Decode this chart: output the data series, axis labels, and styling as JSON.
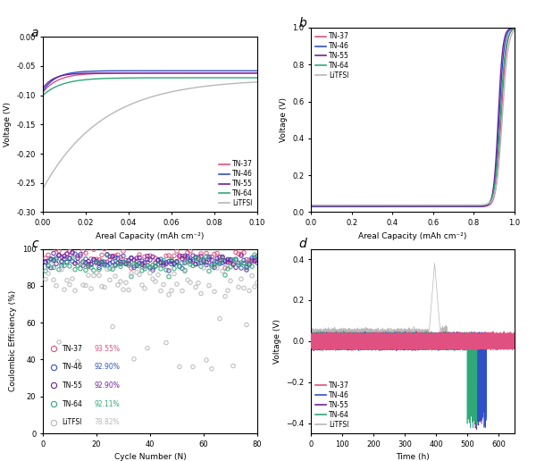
{
  "colors": {
    "TN-37": "#e05080",
    "TN-46": "#3050c8",
    "TN-55": "#7020a0",
    "TN-64": "#30a878",
    "LiTFSI": "#b8b8b8"
  },
  "legend_labels": [
    "TN-37",
    "TN-46",
    "TN-55",
    "TN-64",
    "LiTFSI"
  ],
  "panel_a": {
    "xlabel": "Areal Capacity (mAh cm⁻²)",
    "ylabel": "Voltage (V)",
    "xlim": [
      0.0,
      0.1
    ],
    "ylim": [
      -0.3,
      0.0
    ],
    "xticks": [
      0.0,
      0.02,
      0.04,
      0.06,
      0.08,
      0.1
    ],
    "yticks": [
      0.0,
      -0.05,
      -0.1,
      -0.15,
      -0.2,
      -0.25,
      -0.3
    ]
  },
  "panel_b": {
    "xlabel": "Areal Capacity (mAh cm⁻²)",
    "ylabel": "Voltage (V)",
    "xlim": [
      0.0,
      1.0
    ],
    "ylim": [
      0.0,
      1.0
    ],
    "xticks": [
      0.0,
      0.2,
      0.4,
      0.6,
      0.8,
      1.0
    ],
    "yticks": [
      0.0,
      0.2,
      0.4,
      0.6,
      0.8,
      1.0
    ]
  },
  "panel_c": {
    "xlabel": "Cycle Number (N)",
    "ylabel": "Coulombic Efficiency (%)",
    "xlim": [
      0,
      80
    ],
    "ylim": [
      0,
      100
    ],
    "xticks": [
      0,
      20,
      40,
      60,
      80
    ],
    "yticks": [
      0,
      20,
      40,
      60,
      80,
      100
    ],
    "ce_values": {
      "TN-37": "93.55%",
      "TN-46": "92.90%",
      "TN-55": "92.90%",
      "TN-64": "92.11%",
      "LiTFSI": "78.82%"
    }
  },
  "panel_d": {
    "xlabel": "Time (h)",
    "ylabel": "Voltage (V)",
    "xlim": [
      0,
      650
    ],
    "ylim": [
      -0.45,
      0.45
    ],
    "xticks": [
      0,
      100,
      200,
      300,
      400,
      500,
      600
    ],
    "yticks": [
      -0.4,
      -0.2,
      0.0,
      0.2,
      0.4
    ]
  }
}
